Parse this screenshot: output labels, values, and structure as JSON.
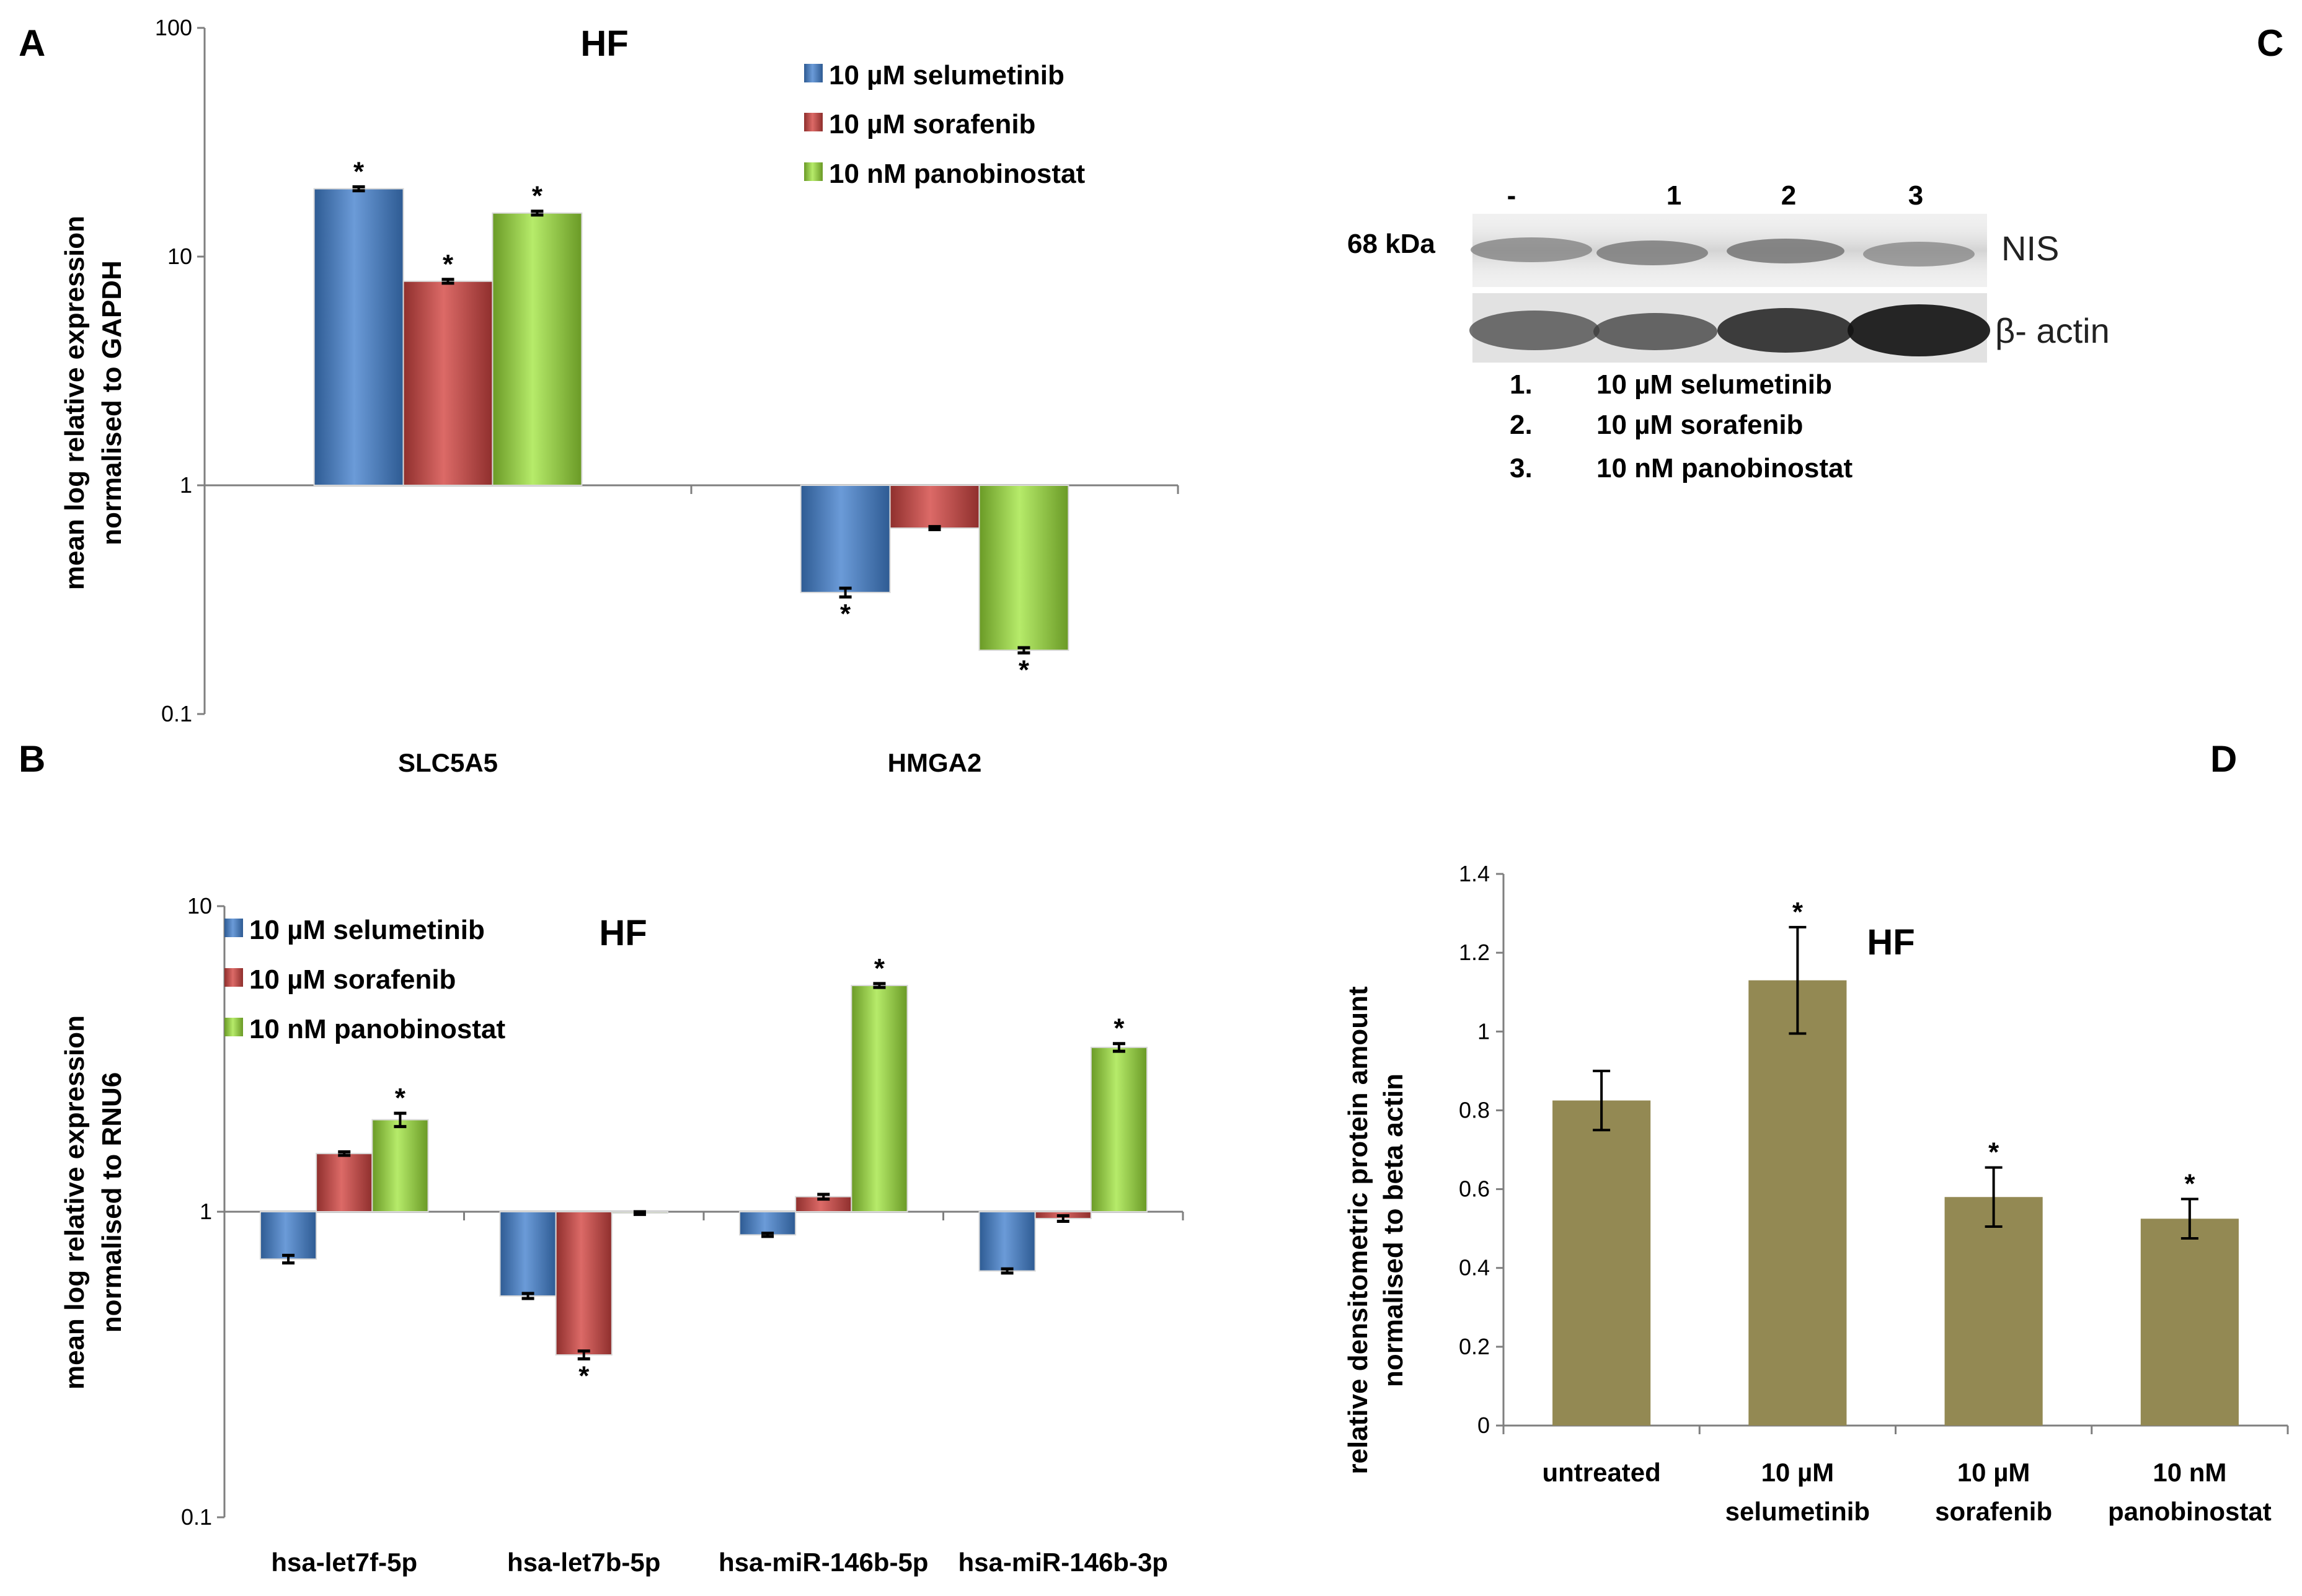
{
  "panels": {
    "a": "A",
    "b": "B",
    "c": "C",
    "d": "D"
  },
  "colors": {
    "selumetinib": "#4f81bd",
    "sorafenib": "#c0504d",
    "panobinostat": "#9bd34f",
    "densitometry_bar": "#938953",
    "axis": "#7f7f7f"
  },
  "blot": {
    "lanes": [
      "-",
      "1",
      "2",
      "3"
    ],
    "marker": "68 kDa",
    "bands": [
      "NIS",
      "β- actin"
    ],
    "key": [
      {
        "num": "1.",
        "text": "10 µM selumetinib"
      },
      {
        "num": "2.",
        "text": "10 µM sorafenib"
      },
      {
        "num": "3.",
        "text": "10 nM panobinostat"
      }
    ]
  },
  "chart_data": [
    {
      "type": "bar",
      "title": "HF",
      "scale": "log",
      "ylim": [
        0.1,
        100
      ],
      "yticks": [
        "0.1",
        "1",
        "10",
        "100"
      ],
      "ylabel_lines": [
        "mean log relative expression",
        "normalised to GAPDH"
      ],
      "categories": [
        "SLC5A5",
        "HMGA2"
      ],
      "series": [
        {
          "name": "10 µM selumetinib",
          "values": [
            19.8,
            0.34
          ],
          "errors": [
            0.4,
            0.015
          ],
          "significant": [
            true,
            true
          ]
        },
        {
          "name": "10 µM sorafenib",
          "values": [
            7.8,
            0.65
          ],
          "errors": [
            0.15,
            0.01
          ],
          "significant": [
            true,
            false
          ]
        },
        {
          "name": "10 nM panobinostat",
          "values": [
            15.5,
            0.19
          ],
          "errors": [
            0.3,
            0.005
          ],
          "significant": [
            true,
            true
          ]
        }
      ],
      "annotation": "*"
    },
    {
      "type": "bar",
      "title": "HF",
      "scale": "log",
      "ylim": [
        0.1,
        10
      ],
      "yticks": [
        "0.1",
        "1",
        "10"
      ],
      "ylabel_lines": [
        "mean log relative expression",
        "normalised to RNU6"
      ],
      "categories": [
        "hsa-let7f-5p",
        "hsa-let7b-5p",
        "hsa-miR-146b-5p",
        "hsa-miR-146b-3p"
      ],
      "series": [
        {
          "name": "10 µM selumetinib",
          "values": [
            0.7,
            0.53,
            0.84,
            0.64
          ],
          "errors": [
            0.02,
            0.01,
            0.01,
            0.01
          ],
          "significant": [
            false,
            false,
            false,
            false
          ]
        },
        {
          "name": "10 µM sorafenib",
          "values": [
            1.55,
            0.34,
            1.12,
            0.95
          ],
          "errors": [
            0.02,
            0.01,
            0.02,
            0.02
          ],
          "significant": [
            false,
            true,
            false,
            false
          ]
        },
        {
          "name": "10 nM panobinostat",
          "values": [
            2.0,
            0.99,
            5.5,
            3.45
          ],
          "errors": [
            0.1,
            0.01,
            0.08,
            0.1
          ],
          "significant": [
            true,
            false,
            true,
            true
          ]
        }
      ],
      "annotation": "*"
    },
    {
      "type": "bar",
      "title": "HF",
      "scale": "linear",
      "ylim": [
        0,
        1.4
      ],
      "yticks": [
        "0",
        "0.2",
        "0.4",
        "0.6",
        "0.8",
        "1",
        "1.2",
        "1.4"
      ],
      "ylabel_lines": [
        "relative densitometric protein amount",
        "normalised to beta actin"
      ],
      "categories": [
        [
          "untreated"
        ],
        [
          "10 µM",
          "selumetinib"
        ],
        [
          "10 µM",
          "sorafenib"
        ],
        [
          "10 nM",
          "panobinostat"
        ]
      ],
      "values": [
        0.825,
        1.13,
        0.58,
        0.525
      ],
      "errors": [
        0.075,
        0.135,
        0.075,
        0.05
      ],
      "significant": [
        false,
        true,
        true,
        true
      ],
      "annotation": "*"
    }
  ]
}
